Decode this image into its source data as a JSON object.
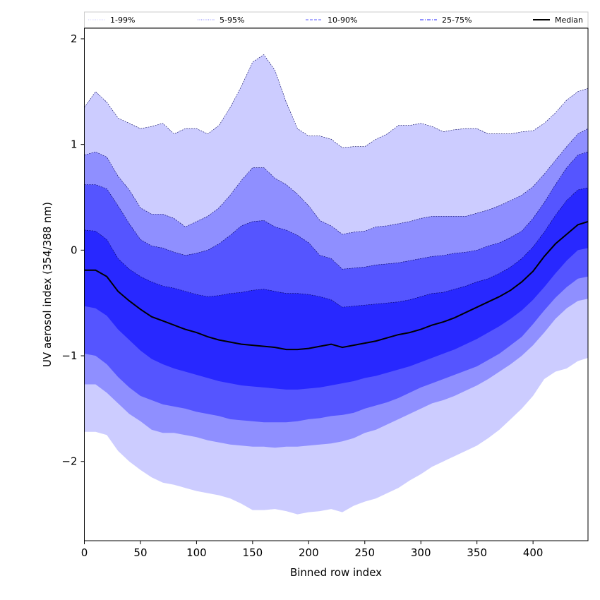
{
  "chart_data": {
    "type": "area",
    "xlabel": "Binned row index",
    "ylabel": "UV aerosol index (354/388 nm)",
    "xlim": [
      0,
      449
    ],
    "ylim": [
      -2.75,
      2.1
    ],
    "x_ticks": [
      0,
      50,
      100,
      150,
      200,
      250,
      300,
      350,
      400
    ],
    "y_ticks": [
      -2,
      -1,
      0,
      1,
      2
    ],
    "y_tick_labels": [
      "−2",
      "−1",
      "0",
      "1",
      "2"
    ],
    "grid": false,
    "legend_position": "top",
    "legend": [
      {
        "label": "1-99%",
        "color": "#d7d7ff",
        "style": "dotted"
      },
      {
        "label": "5-95%",
        "color": "#9a9aff",
        "style": "dotted"
      },
      {
        "label": "10-90%",
        "color": "#7a7aff",
        "style": "dashed"
      },
      {
        "label": "25-75%",
        "color": "#5050ff",
        "style": "dashdot"
      },
      {
        "label": "Median",
        "color": "#000000",
        "style": "solid"
      }
    ],
    "colors": {
      "band_1_99": "#ccccff",
      "band_5_95": "#8f8fff",
      "band_10_90": "#5555ff",
      "band_25_75": "#2828ff",
      "median": "#000000"
    },
    "x": [
      0,
      10,
      20,
      30,
      40,
      50,
      60,
      70,
      80,
      90,
      100,
      110,
      120,
      130,
      140,
      150,
      160,
      170,
      180,
      190,
      200,
      210,
      220,
      230,
      240,
      250,
      260,
      270,
      280,
      290,
      300,
      310,
      320,
      330,
      340,
      350,
      360,
      370,
      380,
      390,
      400,
      410,
      420,
      430,
      440,
      449
    ],
    "series": [
      {
        "name": "1-99%",
        "role": "upper",
        "values": [
          1.35,
          1.5,
          1.4,
          1.25,
          1.2,
          1.15,
          1.17,
          1.2,
          1.1,
          1.15,
          1.15,
          1.1,
          1.18,
          1.35,
          1.55,
          1.78,
          1.85,
          1.7,
          1.4,
          1.15,
          1.08,
          1.08,
          1.05,
          0.97,
          0.98,
          0.98,
          1.05,
          1.1,
          1.18,
          1.18,
          1.2,
          1.17,
          1.12,
          1.14,
          1.15,
          1.15,
          1.1,
          1.1,
          1.1,
          1.12,
          1.13,
          1.2,
          1.3,
          1.42,
          1.5,
          1.53
        ]
      },
      {
        "name": "1-99%",
        "role": "lower",
        "values": [
          -1.72,
          -1.72,
          -1.75,
          -1.9,
          -2.0,
          -2.08,
          -2.15,
          -2.2,
          -2.22,
          -2.25,
          -2.28,
          -2.3,
          -2.32,
          -2.35,
          -2.4,
          -2.46,
          -2.46,
          -2.45,
          -2.47,
          -2.5,
          -2.48,
          -2.47,
          -2.45,
          -2.48,
          -2.42,
          -2.38,
          -2.35,
          -2.3,
          -2.25,
          -2.18,
          -2.12,
          -2.05,
          -2.0,
          -1.95,
          -1.9,
          -1.85,
          -1.78,
          -1.7,
          -1.6,
          -1.5,
          -1.38,
          -1.22,
          -1.15,
          -1.12,
          -1.05,
          -1.02
        ]
      },
      {
        "name": "5-95%",
        "role": "upper",
        "values": [
          0.9,
          0.93,
          0.88,
          0.7,
          0.57,
          0.4,
          0.34,
          0.34,
          0.3,
          0.22,
          0.27,
          0.32,
          0.4,
          0.52,
          0.66,
          0.78,
          0.78,
          0.68,
          0.62,
          0.53,
          0.42,
          0.28,
          0.23,
          0.15,
          0.17,
          0.18,
          0.22,
          0.23,
          0.25,
          0.27,
          0.3,
          0.32,
          0.32,
          0.32,
          0.32,
          0.35,
          0.38,
          0.42,
          0.47,
          0.52,
          0.6,
          0.72,
          0.85,
          0.98,
          1.1,
          1.15
        ]
      },
      {
        "name": "5-95%",
        "role": "lower",
        "values": [
          -1.27,
          -1.27,
          -1.35,
          -1.45,
          -1.55,
          -1.62,
          -1.7,
          -1.73,
          -1.73,
          -1.75,
          -1.77,
          -1.8,
          -1.82,
          -1.84,
          -1.85,
          -1.86,
          -1.86,
          -1.87,
          -1.86,
          -1.86,
          -1.85,
          -1.84,
          -1.83,
          -1.81,
          -1.78,
          -1.73,
          -1.7,
          -1.65,
          -1.6,
          -1.55,
          -1.5,
          -1.45,
          -1.42,
          -1.38,
          -1.33,
          -1.28,
          -1.22,
          -1.15,
          -1.08,
          -1.0,
          -0.9,
          -0.78,
          -0.65,
          -0.55,
          -0.48,
          -0.46
        ]
      },
      {
        "name": "10-90%",
        "role": "upper",
        "values": [
          0.62,
          0.62,
          0.58,
          0.42,
          0.25,
          0.1,
          0.04,
          0.02,
          -0.02,
          -0.05,
          -0.03,
          0.0,
          0.06,
          0.14,
          0.23,
          0.27,
          0.28,
          0.22,
          0.19,
          0.14,
          0.07,
          -0.05,
          -0.08,
          -0.18,
          -0.17,
          -0.16,
          -0.14,
          -0.13,
          -0.12,
          -0.1,
          -0.08,
          -0.06,
          -0.05,
          -0.03,
          -0.02,
          0.0,
          0.04,
          0.07,
          0.12,
          0.18,
          0.3,
          0.45,
          0.62,
          0.78,
          0.9,
          0.93
        ]
      },
      {
        "name": "10-90%",
        "role": "lower",
        "values": [
          -0.98,
          -1.0,
          -1.08,
          -1.2,
          -1.3,
          -1.38,
          -1.42,
          -1.46,
          -1.48,
          -1.5,
          -1.53,
          -1.55,
          -1.57,
          -1.6,
          -1.61,
          -1.62,
          -1.63,
          -1.63,
          -1.63,
          -1.62,
          -1.6,
          -1.59,
          -1.57,
          -1.56,
          -1.54,
          -1.5,
          -1.47,
          -1.44,
          -1.4,
          -1.35,
          -1.3,
          -1.26,
          -1.22,
          -1.18,
          -1.14,
          -1.1,
          -1.04,
          -0.98,
          -0.9,
          -0.82,
          -0.7,
          -0.57,
          -0.45,
          -0.35,
          -0.27,
          -0.25
        ]
      },
      {
        "name": "25-75%",
        "role": "upper",
        "values": [
          0.19,
          0.18,
          0.1,
          -0.08,
          -0.18,
          -0.25,
          -0.3,
          -0.34,
          -0.36,
          -0.39,
          -0.42,
          -0.44,
          -0.43,
          -0.41,
          -0.4,
          -0.38,
          -0.37,
          -0.39,
          -0.41,
          -0.41,
          -0.42,
          -0.44,
          -0.47,
          -0.54,
          -0.53,
          -0.52,
          -0.51,
          -0.5,
          -0.49,
          -0.47,
          -0.44,
          -0.41,
          -0.4,
          -0.37,
          -0.34,
          -0.3,
          -0.27,
          -0.22,
          -0.16,
          -0.08,
          0.03,
          0.17,
          0.33,
          0.47,
          0.57,
          0.59
        ]
      },
      {
        "name": "25-75%",
        "role": "lower",
        "values": [
          -0.53,
          -0.55,
          -0.62,
          -0.75,
          -0.85,
          -0.95,
          -1.03,
          -1.08,
          -1.12,
          -1.15,
          -1.18,
          -1.21,
          -1.24,
          -1.26,
          -1.28,
          -1.29,
          -1.3,
          -1.31,
          -1.32,
          -1.32,
          -1.31,
          -1.3,
          -1.28,
          -1.26,
          -1.24,
          -1.21,
          -1.19,
          -1.16,
          -1.13,
          -1.1,
          -1.06,
          -1.02,
          -0.98,
          -0.94,
          -0.89,
          -0.84,
          -0.78,
          -0.72,
          -0.65,
          -0.57,
          -0.47,
          -0.35,
          -0.22,
          -0.1,
          0.0,
          0.02
        ]
      },
      {
        "name": "Median",
        "role": "line",
        "values": [
          -0.19,
          -0.19,
          -0.25,
          -0.39,
          -0.48,
          -0.56,
          -0.63,
          -0.67,
          -0.71,
          -0.75,
          -0.78,
          -0.82,
          -0.85,
          -0.87,
          -0.89,
          -0.9,
          -0.91,
          -0.92,
          -0.94,
          -0.94,
          -0.93,
          -0.91,
          -0.89,
          -0.92,
          -0.9,
          -0.88,
          -0.86,
          -0.83,
          -0.8,
          -0.78,
          -0.75,
          -0.71,
          -0.68,
          -0.64,
          -0.59,
          -0.54,
          -0.49,
          -0.44,
          -0.38,
          -0.3,
          -0.2,
          -0.06,
          0.06,
          0.15,
          0.24,
          0.27
        ]
      }
    ]
  }
}
